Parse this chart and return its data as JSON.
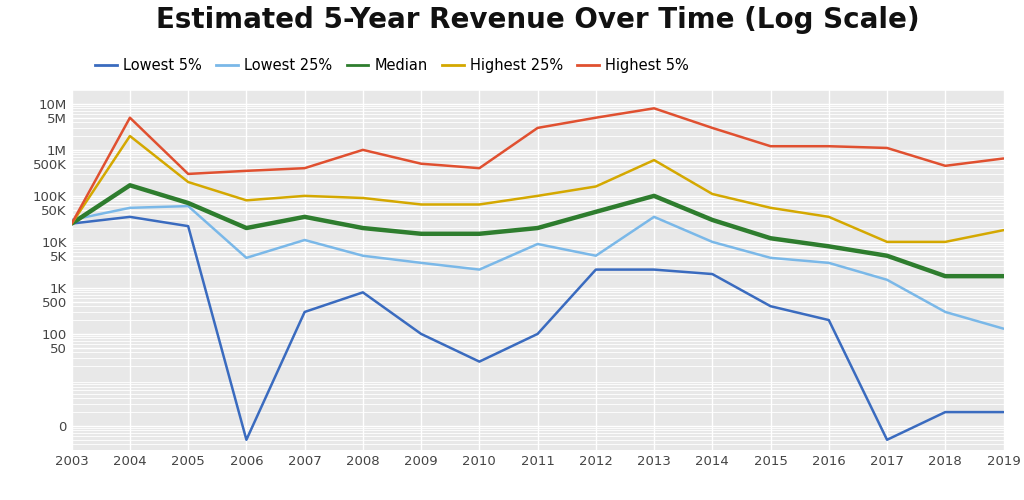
{
  "title": "Estimated 5-Year Revenue Over Time (Log Scale)",
  "years": [
    2003,
    2004,
    2005,
    2006,
    2007,
    2008,
    2009,
    2010,
    2011,
    2012,
    2013,
    2014,
    2015,
    2016,
    2017,
    2018,
    2019
  ],
  "series": {
    "Lowest 5%": [
      25000,
      35000,
      22000,
      0.5,
      300,
      800,
      100,
      25,
      100,
      2500,
      2500,
      2000,
      400,
      200,
      0.5,
      2,
      2
    ],
    "Lowest 25%": [
      30000,
      55000,
      60000,
      4500,
      11000,
      5000,
      3500,
      2500,
      9000,
      5000,
      35000,
      10000,
      4500,
      3500,
      1500,
      300,
      130
    ],
    "Median": [
      25000,
      170000,
      70000,
      20000,
      35000,
      20000,
      15000,
      15000,
      20000,
      45000,
      100000,
      30000,
      12000,
      8000,
      5000,
      1800,
      1800
    ],
    "Highest 25%": [
      25000,
      2000000,
      200000,
      80000,
      100000,
      90000,
      65000,
      65000,
      100000,
      160000,
      600000,
      110000,
      55000,
      35000,
      10000,
      10000,
      18000
    ],
    "Highest 5%": [
      25000,
      5000000,
      300000,
      350000,
      400000,
      1000000,
      500000,
      400000,
      3000000,
      5000000,
      8000000,
      3000000,
      1200000,
      1200000,
      1100000,
      450000,
      650000
    ]
  },
  "series_order": [
    "Lowest 5%",
    "Lowest 25%",
    "Median",
    "Highest 25%",
    "Highest 5%"
  ],
  "colors": {
    "Lowest 5%": "#3a6bbf",
    "Lowest 25%": "#7ab8e8",
    "Median": "#2e7d2e",
    "Highest 25%": "#d4a800",
    "Highest 5%": "#e05030"
  },
  "linewidths": {
    "Lowest 5%": 1.8,
    "Lowest 25%": 1.8,
    "Median": 3.2,
    "Highest 25%": 1.8,
    "Highest 5%": 1.8
  },
  "yticks": [
    1,
    50,
    100,
    500,
    1000,
    5000,
    10000,
    50000,
    100000,
    500000,
    1000000,
    5000000,
    10000000
  ],
  "ytick_labels": [
    "0",
    "50",
    "100",
    "500",
    "1K",
    "5K",
    "10K",
    "50K",
    "100K",
    "500K",
    "1M",
    "5M",
    "10M"
  ],
  "background_color": "#ffffff",
  "plot_bg_color": "#e8e8e8",
  "grid_color": "#ffffff",
  "title_fontsize": 20,
  "tick_fontsize": 9.5,
  "legend_fontsize": 10.5
}
